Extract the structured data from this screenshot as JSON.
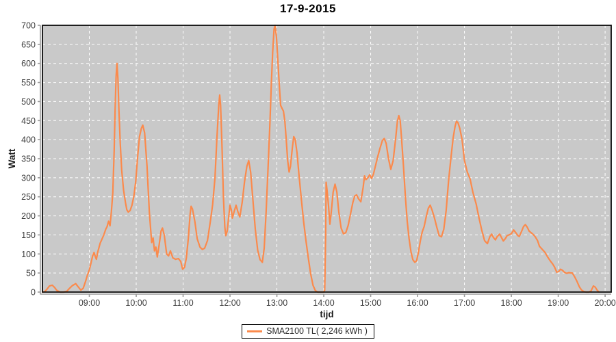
{
  "title": "17-9-2015",
  "legend": {
    "label": "SMA2100 TL( 2,246 kWh )"
  },
  "chart_data": {
    "type": "line",
    "title": "17-9-2015",
    "xlabel": "tijd",
    "ylabel": "Watt",
    "xlim": [
      8.0,
      20.13
    ],
    "ylim": [
      0,
      700
    ],
    "grid": true,
    "legend_position": "bottom",
    "plot_bg": "#c9c9c9",
    "grid_color": "#ffffff",
    "border_color": "#0a0a0a",
    "axis_color": "#9a9a9a",
    "tick_label_color": "#3a3a3a",
    "axis_title_color": "#1a1a1a",
    "y_ticks": [
      0,
      50,
      100,
      150,
      200,
      250,
      300,
      350,
      400,
      450,
      500,
      550,
      600,
      650,
      700
    ],
    "x_ticks": [
      {
        "v": 9,
        "label": "09:00"
      },
      {
        "v": 10,
        "label": "10:00"
      },
      {
        "v": 11,
        "label": "11:00"
      },
      {
        "v": 12,
        "label": "12:00"
      },
      {
        "v": 13,
        "label": "13:00"
      },
      {
        "v": 14,
        "label": "14:00"
      },
      {
        "v": 15,
        "label": "15:00"
      },
      {
        "v": 16,
        "label": "16:00"
      },
      {
        "v": 17,
        "label": "17:00"
      },
      {
        "v": 18,
        "label": "18:00"
      },
      {
        "v": 19,
        "label": "19:00"
      },
      {
        "v": 20,
        "label": "20:00"
      }
    ],
    "series": [
      {
        "name": "SMA2100 TL( 2,246 kWh )",
        "color": "#fb8a4c",
        "points": [
          [
            8.0,
            0
          ],
          [
            8.05,
            1
          ],
          [
            8.1,
            8
          ],
          [
            8.15,
            16
          ],
          [
            8.21,
            18
          ],
          [
            8.26,
            12
          ],
          [
            8.31,
            4
          ],
          [
            8.38,
            0
          ],
          [
            8.45,
            0
          ],
          [
            8.52,
            2
          ],
          [
            8.58,
            10
          ],
          [
            8.64,
            17
          ],
          [
            8.71,
            22
          ],
          [
            8.76,
            14
          ],
          [
            8.82,
            5
          ],
          [
            8.87,
            10
          ],
          [
            8.92,
            28
          ],
          [
            8.96,
            45
          ],
          [
            9.0,
            58
          ],
          [
            9.04,
            78
          ],
          [
            9.07,
            95
          ],
          [
            9.1,
            104
          ],
          [
            9.12,
            96
          ],
          [
            9.15,
            86
          ],
          [
            9.18,
            105
          ],
          [
            9.23,
            128
          ],
          [
            9.28,
            142
          ],
          [
            9.31,
            150
          ],
          [
            9.35,
            165
          ],
          [
            9.38,
            172
          ],
          [
            9.41,
            186
          ],
          [
            9.44,
            174
          ],
          [
            9.47,
            210
          ],
          [
            9.5,
            260
          ],
          [
            9.53,
            370
          ],
          [
            9.55,
            480
          ],
          [
            9.57,
            565
          ],
          [
            9.59,
            600
          ],
          [
            9.61,
            560
          ],
          [
            9.63,
            480
          ],
          [
            9.66,
            390
          ],
          [
            9.69,
            320
          ],
          [
            9.73,
            268
          ],
          [
            9.77,
            235
          ],
          [
            9.8,
            216
          ],
          [
            9.83,
            210
          ],
          [
            9.87,
            214
          ],
          [
            9.91,
            228
          ],
          [
            9.95,
            252
          ],
          [
            9.99,
            290
          ],
          [
            10.03,
            355
          ],
          [
            10.07,
            408
          ],
          [
            10.11,
            430
          ],
          [
            10.14,
            438
          ],
          [
            10.18,
            418
          ],
          [
            10.23,
            330
          ],
          [
            10.28,
            210
          ],
          [
            10.33,
            130
          ],
          [
            10.36,
            142
          ],
          [
            10.39,
            108
          ],
          [
            10.42,
            118
          ],
          [
            10.45,
            92
          ],
          [
            10.49,
            125
          ],
          [
            10.53,
            160
          ],
          [
            10.56,
            168
          ],
          [
            10.6,
            148
          ],
          [
            10.65,
            100
          ],
          [
            10.69,
            95
          ],
          [
            10.73,
            108
          ],
          [
            10.78,
            90
          ],
          [
            10.84,
            86
          ],
          [
            10.9,
            88
          ],
          [
            10.95,
            80
          ],
          [
            10.99,
            60
          ],
          [
            11.03,
            65
          ],
          [
            11.07,
            90
          ],
          [
            11.11,
            140
          ],
          [
            11.15,
            205
          ],
          [
            11.17,
            225
          ],
          [
            11.2,
            218
          ],
          [
            11.25,
            185
          ],
          [
            11.3,
            140
          ],
          [
            11.36,
            118
          ],
          [
            11.41,
            112
          ],
          [
            11.46,
            115
          ],
          [
            11.52,
            135
          ],
          [
            11.58,
            185
          ],
          [
            11.63,
            230
          ],
          [
            11.68,
            300
          ],
          [
            11.72,
            400
          ],
          [
            11.76,
            490
          ],
          [
            11.78,
            517
          ],
          [
            11.8,
            490
          ],
          [
            11.83,
            380
          ],
          [
            11.86,
            250
          ],
          [
            11.89,
            170
          ],
          [
            11.91,
            148
          ],
          [
            11.94,
            160
          ],
          [
            11.97,
            195
          ],
          [
            12.0,
            228
          ],
          [
            12.03,
            215
          ],
          [
            12.05,
            194
          ],
          [
            12.09,
            212
          ],
          [
            12.13,
            228
          ],
          [
            12.17,
            210
          ],
          [
            12.21,
            197
          ],
          [
            12.26,
            235
          ],
          [
            12.31,
            290
          ],
          [
            12.36,
            330
          ],
          [
            12.4,
            345
          ],
          [
            12.44,
            315
          ],
          [
            12.49,
            240
          ],
          [
            12.54,
            165
          ],
          [
            12.59,
            110
          ],
          [
            12.64,
            85
          ],
          [
            12.69,
            78
          ],
          [
            12.73,
            115
          ],
          [
            12.77,
            210
          ],
          [
            12.81,
            320
          ],
          [
            12.85,
            440
          ],
          [
            12.88,
            540
          ],
          [
            12.91,
            630
          ],
          [
            12.94,
            690
          ],
          [
            12.96,
            700
          ],
          [
            12.99,
            670
          ],
          [
            13.02,
            610
          ],
          [
            13.05,
            545
          ],
          [
            13.08,
            490
          ],
          [
            13.11,
            482
          ],
          [
            13.14,
            475
          ],
          [
            13.17,
            448
          ],
          [
            13.2,
            400
          ],
          [
            13.23,
            345
          ],
          [
            13.26,
            315
          ],
          [
            13.29,
            330
          ],
          [
            13.33,
            378
          ],
          [
            13.36,
            408
          ],
          [
            13.39,
            400
          ],
          [
            13.43,
            365
          ],
          [
            13.47,
            310
          ],
          [
            13.52,
            245
          ],
          [
            13.57,
            185
          ],
          [
            13.62,
            135
          ],
          [
            13.67,
            90
          ],
          [
            13.72,
            48
          ],
          [
            13.77,
            18
          ],
          [
            13.82,
            4
          ],
          [
            13.87,
            0
          ],
          [
            13.94,
            0
          ],
          [
            14.0,
            0
          ],
          [
            14.02,
            5
          ],
          [
            14.04,
            150
          ],
          [
            14.05,
            288
          ],
          [
            14.07,
            268
          ],
          [
            14.1,
            228
          ],
          [
            14.13,
            178
          ],
          [
            14.16,
            210
          ],
          [
            14.2,
            262
          ],
          [
            14.24,
            283
          ],
          [
            14.28,
            262
          ],
          [
            14.32,
            210
          ],
          [
            14.37,
            168
          ],
          [
            14.42,
            153
          ],
          [
            14.47,
            156
          ],
          [
            14.52,
            175
          ],
          [
            14.57,
            205
          ],
          [
            14.62,
            235
          ],
          [
            14.66,
            252
          ],
          [
            14.7,
            255
          ],
          [
            14.74,
            245
          ],
          [
            14.79,
            237
          ],
          [
            14.84,
            275
          ],
          [
            14.87,
            305
          ],
          [
            14.9,
            295
          ],
          [
            14.94,
            300
          ],
          [
            14.98,
            308
          ],
          [
            15.02,
            298
          ],
          [
            15.06,
            310
          ],
          [
            15.1,
            330
          ],
          [
            15.15,
            355
          ],
          [
            15.2,
            378
          ],
          [
            15.25,
            398
          ],
          [
            15.29,
            403
          ],
          [
            15.33,
            390
          ],
          [
            15.38,
            350
          ],
          [
            15.43,
            322
          ],
          [
            15.48,
            345
          ],
          [
            15.53,
            400
          ],
          [
            15.57,
            448
          ],
          [
            15.6,
            463
          ],
          [
            15.63,
            450
          ],
          [
            15.66,
            400
          ],
          [
            15.7,
            330
          ],
          [
            15.74,
            250
          ],
          [
            15.78,
            185
          ],
          [
            15.82,
            140
          ],
          [
            15.86,
            105
          ],
          [
            15.9,
            85
          ],
          [
            15.94,
            78
          ],
          [
            15.98,
            82
          ],
          [
            16.02,
            105
          ],
          [
            16.06,
            135
          ],
          [
            16.1,
            158
          ],
          [
            16.14,
            172
          ],
          [
            16.18,
            195
          ],
          [
            16.23,
            220
          ],
          [
            16.27,
            228
          ],
          [
            16.31,
            215
          ],
          [
            16.36,
            195
          ],
          [
            16.41,
            170
          ],
          [
            16.46,
            148
          ],
          [
            16.51,
            145
          ],
          [
            16.56,
            165
          ],
          [
            16.61,
            215
          ],
          [
            16.66,
            290
          ],
          [
            16.71,
            350
          ],
          [
            16.76,
            405
          ],
          [
            16.8,
            435
          ],
          [
            16.83,
            448
          ],
          [
            16.86,
            445
          ],
          [
            16.9,
            430
          ],
          [
            16.95,
            400
          ],
          [
            17.0,
            345
          ],
          [
            17.06,
            315
          ],
          [
            17.12,
            297
          ],
          [
            17.18,
            262
          ],
          [
            17.25,
            231
          ],
          [
            17.31,
            195
          ],
          [
            17.37,
            162
          ],
          [
            17.43,
            135
          ],
          [
            17.49,
            127
          ],
          [
            17.54,
            145
          ],
          [
            17.58,
            152
          ],
          [
            17.62,
            143
          ],
          [
            17.66,
            137
          ],
          [
            17.7,
            146
          ],
          [
            17.75,
            152
          ],
          [
            17.79,
            143
          ],
          [
            17.83,
            134
          ],
          [
            17.87,
            140
          ],
          [
            17.91,
            148
          ],
          [
            17.95,
            150
          ],
          [
            18.0,
            153
          ],
          [
            18.05,
            163
          ],
          [
            18.1,
            155
          ],
          [
            18.14,
            148
          ],
          [
            18.17,
            146
          ],
          [
            18.22,
            160
          ],
          [
            18.26,
            172
          ],
          [
            18.3,
            177
          ],
          [
            18.34,
            170
          ],
          [
            18.38,
            160
          ],
          [
            18.42,
            156
          ],
          [
            18.46,
            152
          ],
          [
            18.51,
            145
          ],
          [
            18.56,
            135
          ],
          [
            18.6,
            120
          ],
          [
            18.66,
            112
          ],
          [
            18.72,
            104
          ],
          [
            18.77,
            93
          ],
          [
            18.83,
            82
          ],
          [
            18.88,
            74
          ],
          [
            18.92,
            66
          ],
          [
            18.97,
            52
          ],
          [
            19.01,
            54
          ],
          [
            19.05,
            60
          ],
          [
            19.09,
            57
          ],
          [
            19.13,
            52
          ],
          [
            19.18,
            49
          ],
          [
            19.23,
            51
          ],
          [
            19.28,
            50
          ],
          [
            19.3,
            50
          ],
          [
            19.35,
            40
          ],
          [
            19.4,
            28
          ],
          [
            19.45,
            14
          ],
          [
            19.5,
            5
          ],
          [
            19.55,
            1
          ],
          [
            19.6,
            0
          ],
          [
            19.65,
            0
          ],
          [
            19.7,
            3
          ],
          [
            19.75,
            16
          ],
          [
            19.79,
            13
          ],
          [
            19.83,
            5
          ],
          [
            19.87,
            0
          ]
        ]
      }
    ]
  }
}
